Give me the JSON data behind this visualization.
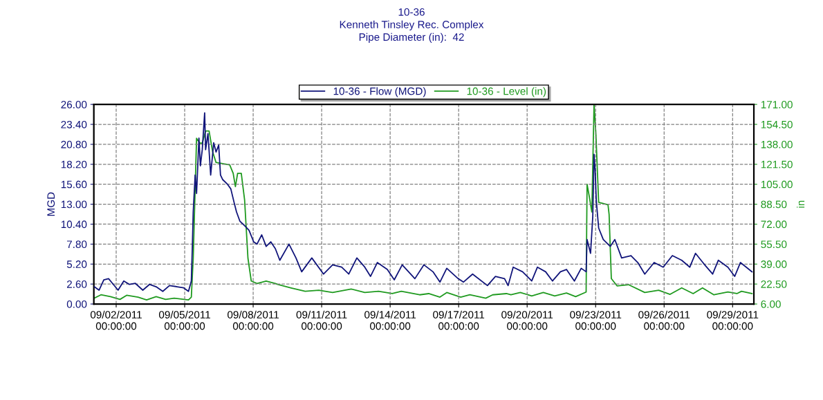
{
  "chart_data": {
    "type": "line",
    "title": "10-36\nKenneth Tinsley Rec. Complex\nPipe Diameter (in):  42",
    "ylabel": "MGD",
    "y2label": "in",
    "xlim": [
      "2011-09-01T00:30",
      "2011-09-29T22:20"
    ],
    "xticks": [
      {
        "value": "2011-09-02",
        "label": "09/02/2011\n00:00:00"
      },
      {
        "value": "2011-09-05",
        "label": "09/05/2011\n00:00:00"
      },
      {
        "value": "2011-09-08",
        "label": "09/08/2011\n00:00:00"
      },
      {
        "value": "2011-09-11",
        "label": "09/11/2011\n00:00:00"
      },
      {
        "value": "2011-09-14",
        "label": "09/14/2011\n00:00:00"
      },
      {
        "value": "2011-09-17",
        "label": "09/17/2011\n00:00:00"
      },
      {
        "value": "2011-09-20",
        "label": "09/20/2011\n00:00:00"
      },
      {
        "value": "2011-09-23",
        "label": "09/23/2011\n00:00:00"
      },
      {
        "value": "2011-09-26",
        "label": "09/26/2011\n00:00:00"
      },
      {
        "value": "2011-09-29",
        "label": "09/29/2011\n00:00:00"
      }
    ],
    "ylim": [
      0,
      26
    ],
    "yticks": [
      {
        "value": 0,
        "label": "0.00"
      },
      {
        "value": 2.6,
        "label": "2.60"
      },
      {
        "value": 5.2,
        "label": "5.20"
      },
      {
        "value": 7.8,
        "label": "7.80"
      },
      {
        "value": 10.4,
        "label": "10.40"
      },
      {
        "value": 13,
        "label": "13.00"
      },
      {
        "value": 15.6,
        "label": "15.60"
      },
      {
        "value": 18.2,
        "label": "18.20"
      },
      {
        "value": 20.8,
        "label": "20.80"
      },
      {
        "value": 23.4,
        "label": "23.40"
      },
      {
        "value": 26,
        "label": "26.00"
      }
    ],
    "y2lim": [
      6,
      171
    ],
    "y2ticks": [
      {
        "value": 6,
        "label": "6.00"
      },
      {
        "value": 22.5,
        "label": "22.50"
      },
      {
        "value": 39,
        "label": "39.00"
      },
      {
        "value": 55.5,
        "label": "55.50"
      },
      {
        "value": 72,
        "label": "72.00"
      },
      {
        "value": 88.5,
        "label": "88.50"
      },
      {
        "value": 105,
        "label": "105.00"
      },
      {
        "value": 121.5,
        "label": "121.50"
      },
      {
        "value": 138,
        "label": "138.00"
      },
      {
        "value": 154.5,
        "label": "154.50"
      },
      {
        "value": 171,
        "label": "171.00"
      }
    ],
    "grid": true,
    "legend": "top",
    "line_style": "solid",
    "series": [
      {
        "name": "10-36 - Flow (MGD)",
        "color": "#10147a",
        "x": [
          "2011-09-01T01:00",
          "2011-09-01T06:00",
          "2011-09-01T11:00",
          "2011-09-01T16:00",
          "2011-09-01T20:00",
          "2011-09-02T02:00",
          "2011-09-02T08:00",
          "2011-09-02T14:00",
          "2011-09-02T20:00",
          "2011-09-03T04:00",
          "2011-09-03T11:00",
          "2011-09-03T18:00",
          "2011-09-04T01:00",
          "2011-09-04T08:00",
          "2011-09-04T16:00",
          "2011-09-04T23:00",
          "2011-09-05T04:00",
          "2011-09-05T07:00",
          "2011-09-05T08:00",
          "2011-09-05T09:00",
          "2011-09-05T11:00",
          "2011-09-05T12:30",
          "2011-09-05T15:00",
          "2011-09-05T16:30",
          "2011-09-05T18:30",
          "2011-09-05T21:00",
          "2011-09-05T22:00",
          "2011-09-06T00:30",
          "2011-09-06T03:20",
          "2011-09-06T06:30",
          "2011-09-06T09:00",
          "2011-09-06T11:45",
          "2011-09-06T13:40",
          "2011-09-06T16:00",
          "2011-09-06T21:00",
          "2011-09-07T00:30",
          "2011-09-07T04:00",
          "2011-09-07T06:30",
          "2011-09-07T10:00",
          "2011-09-07T15:00",
          "2011-09-07T19:40",
          "2011-09-08T00:30",
          "2011-09-08T04:00",
          "2011-09-08T09:00",
          "2011-09-08T13:40",
          "2011-09-08T18:30",
          "2011-09-08T23:20",
          "2011-09-09T04:00",
          "2011-09-09T13:40",
          "2011-09-09T21:00",
          "2011-09-10T03:00",
          "2011-09-10T13:40",
          "2011-09-11T02:00",
          "2011-09-11T11:30",
          "2011-09-11T21:00",
          "2011-09-12T04:30",
          "2011-09-12T13:00",
          "2011-09-12T21:20",
          "2011-09-13T03:20",
          "2011-09-13T10:30",
          "2011-09-13T21:00",
          "2011-09-14T04:20",
          "2011-09-14T12:40",
          "2011-09-15T02:00",
          "2011-09-15T11:30",
          "2011-09-15T21:00",
          "2011-09-16T04:20",
          "2011-09-16T11:30",
          "2011-09-16T23:30",
          "2011-09-17T05:00",
          "2011-09-17T14:40",
          "2011-09-18T06:15",
          "2011-09-18T14:40",
          "2011-09-19T00:15",
          "2011-09-19T04:00",
          "2011-09-19T09:20",
          "2011-09-19T19:10",
          "2011-09-20T04:50",
          "2011-09-20T10:50",
          "2011-09-20T19:25",
          "2011-09-21T02:40",
          "2011-09-21T11:00",
          "2011-09-21T17:20",
          "2011-09-22T01:40",
          "2011-09-22T08:50",
          "2011-09-22T14:00",
          "2011-09-22T15:00",
          "2011-09-22T18:40",
          "2011-09-22T21:00",
          "2011-09-22T22:20",
          "2011-09-22T23:30",
          "2011-09-23T00:40",
          "2011-09-23T03:10",
          "2011-09-23T08:00",
          "2011-09-23T15:20",
          "2011-09-23T20:10",
          "2011-09-24T03:20",
          "2011-09-24T13:10",
          "2011-09-24T20:20",
          "2011-09-25T03:40",
          "2011-09-25T13:30",
          "2011-09-25T23:00",
          "2011-09-26T08:40",
          "2011-09-26T18:30",
          "2011-09-27T03:00",
          "2011-09-27T09:00",
          "2011-09-27T18:40",
          "2011-09-28T03:00",
          "2011-09-28T09:00",
          "2011-09-28T19:00",
          "2011-09-29T02:10",
          "2011-09-29T08:10",
          "2011-09-29T14:20",
          "2011-09-29T20:20"
        ],
        "values": [
          2.25,
          1.8,
          3.15,
          3.3,
          2.7,
          1.8,
          3.0,
          2.55,
          2.7,
          1.8,
          2.55,
          2.25,
          1.65,
          2.4,
          2.25,
          2.1,
          1.65,
          3.0,
          7.2,
          12.0,
          16.8,
          14.4,
          21.6,
          18.0,
          20.1,
          24.9,
          20.1,
          22.2,
          16.8,
          21.0,
          19.8,
          20.7,
          16.8,
          16.2,
          15.6,
          15.0,
          13.2,
          12.0,
          10.8,
          10.2,
          9.6,
          8.1,
          7.8,
          9.0,
          7.5,
          8.1,
          7.2,
          5.7,
          7.8,
          6.0,
          4.2,
          6.0,
          3.9,
          5.1,
          4.8,
          3.9,
          6.0,
          4.8,
          3.6,
          5.4,
          4.5,
          3.15,
          5.1,
          3.3,
          5.1,
          4.2,
          2.85,
          4.65,
          3.3,
          2.85,
          3.9,
          2.4,
          3.6,
          3.3,
          2.4,
          4.8,
          4.2,
          3.0,
          4.8,
          4.2,
          3.0,
          4.2,
          4.5,
          3.0,
          4.65,
          4.2,
          8.4,
          6.6,
          11.4,
          19.5,
          17.4,
          13.5,
          9.9,
          8.4,
          7.5,
          8.4,
          6.0,
          6.3,
          5.4,
          3.9,
          5.4,
          4.8,
          6.3,
          5.7,
          4.8,
          6.6,
          5.1,
          3.9,
          5.7,
          4.8,
          3.6,
          5.4,
          4.8,
          4.2
        ]
      },
      {
        "name": "10-36 - Level (in)",
        "color": "#1f9a1f",
        "axis": "y2",
        "x": [
          "2011-09-01T01:00",
          "2011-09-01T08:00",
          "2011-09-01T18:00",
          "2011-09-02T04:00",
          "2011-09-02T11:00",
          "2011-09-02T23:00",
          "2011-09-03T08:00",
          "2011-09-03T18:00",
          "2011-09-04T04:00",
          "2011-09-04T13:00",
          "2011-09-05T04:00",
          "2011-09-05T07:00",
          "2011-09-05T09:00",
          "2011-09-05T11:00",
          "2011-09-05T12:30",
          "2011-09-05T16:00",
          "2011-09-05T18:30",
          "2011-09-05T22:00",
          "2011-09-06T01:40",
          "2011-09-06T05:20",
          "2011-09-06T09:00",
          "2011-09-06T16:00",
          "2011-09-06T23:20",
          "2011-09-07T03:00",
          "2011-09-07T05:20",
          "2011-09-07T07:40",
          "2011-09-07T11:30",
          "2011-09-07T15:00",
          "2011-09-07T18:30",
          "2011-09-07T22:00",
          "2011-09-08T04:00",
          "2011-09-08T13:40",
          "2011-09-08T23:20",
          "2011-09-09T01:40",
          "2011-09-09T16:00",
          "2011-09-10T06:40",
          "2011-09-10T21:00",
          "2011-09-11T11:30",
          "2011-09-12T07:00",
          "2011-09-12T21:20",
          "2011-09-13T11:45",
          "2011-09-14T02:10",
          "2011-09-14T11:45",
          "2011-09-15T07:00",
          "2011-09-15T16:30",
          "2011-09-16T04:20",
          "2011-09-16T11:30",
          "2011-09-17T02:10",
          "2011-09-17T11:45",
          "2011-09-18T04:30",
          "2011-09-18T11:45",
          "2011-09-19T02:10",
          "2011-09-19T07:00",
          "2011-09-19T16:50",
          "2011-09-20T04:50",
          "2011-09-20T17:00",
          "2011-09-21T05:00",
          "2011-09-21T17:20",
          "2011-09-22T03:00",
          "2011-09-22T14:00",
          "2011-09-22T15:00",
          "2011-09-22T17:30",
          "2011-09-22T20:00",
          "2011-09-22T22:20",
          "2011-09-23T00:15",
          "2011-09-23T03:10",
          "2011-09-23T13:00",
          "2011-09-23T14:10",
          "2011-09-23T16:30",
          "2011-09-23T22:30",
          "2011-09-24T10:30",
          "2011-09-25T03:40",
          "2011-09-25T18:15",
          "2011-09-26T06:15",
          "2011-09-26T18:30",
          "2011-09-27T06:30",
          "2011-09-27T16:20",
          "2011-09-28T04:20",
          "2011-09-28T19:00",
          "2011-09-29T04:30",
          "2011-09-29T09:20",
          "2011-09-29T20:20"
        ],
        "values": [
          10.8,
          13.6,
          12.1,
          9.8,
          13.2,
          11.7,
          9.4,
          12.1,
          9.8,
          10.8,
          9.4,
          11.7,
          44,
          101,
          143,
          139,
          139,
          149,
          149,
          132,
          123,
          122,
          121,
          114,
          103,
          114,
          114,
          92,
          44,
          25,
          23,
          25,
          23,
          22.2,
          19.3,
          16.5,
          17.4,
          15.5,
          18.4,
          15.5,
          16.5,
          14.6,
          16.5,
          13.6,
          14.6,
          11.7,
          15.5,
          11.7,
          13.6,
          10.8,
          13.6,
          14.6,
          13.6,
          15.5,
          12.7,
          15.5,
          12.7,
          15.1,
          12.1,
          15.9,
          105,
          94,
          82,
          171,
          147,
          90,
          88,
          80,
          27,
          21,
          22,
          15.5,
          17.4,
          14,
          19.3,
          14.6,
          19.3,
          13.6,
          15.9,
          14.6,
          16.5,
          14.6
        ]
      }
    ]
  }
}
